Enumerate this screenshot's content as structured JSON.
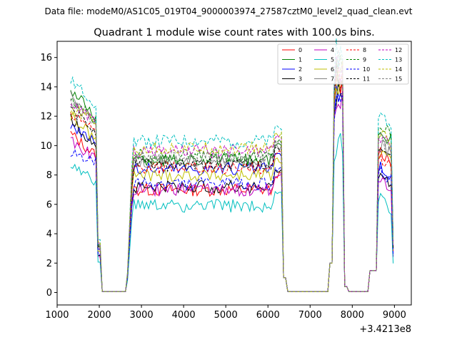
{
  "chart_data": {
    "type": "line",
    "suptitle": "Data file: modeM0/AS1C05_019T04_9000003974_27587cztM0_level2_quad_clean.evt",
    "title": "Quadrant 1 module wise count rates with 100.0s bins.",
    "xlabel": "",
    "ylabel": "",
    "x_offset_label": "+3.4213e8",
    "xlim": [
      1000,
      9400
    ],
    "ylim": [
      -0.85,
      17.1
    ],
    "xticks": [
      1000,
      2000,
      3000,
      4000,
      5000,
      6000,
      7000,
      8000,
      9000
    ],
    "yticks": [
      0,
      2,
      4,
      6,
      8,
      10,
      12,
      14,
      16
    ],
    "legend": {
      "placement": "top-right",
      "columns": 4
    },
    "profile": {
      "description": "time bins (x, data units) with shape: intervals where count rate is ~0 (gaps)",
      "gaps": [
        [
          2050,
          2650
        ],
        [
          6450,
          7450
        ],
        [
          7900,
          8400
        ]
      ],
      "edges": [
        [
          1950,
          2050
        ],
        [
          2650,
          2780
        ],
        [
          6350,
          6450
        ],
        [
          7450,
          7600
        ],
        [
          7800,
          7900
        ],
        [
          8400,
          8580
        ],
        [
          8950,
          9000
        ]
      ],
      "x_start": 1320,
      "x_end": 9000,
      "step": 50
    },
    "series": [
      {
        "name": "0",
        "color": "#ff0000",
        "dash": "solid",
        "levels": {
          "start": 10.8,
          "mid": 7.0,
          "peak": 14.0,
          "tail": 9.8
        }
      },
      {
        "name": "1",
        "color": "#008000",
        "dash": "solid",
        "levels": {
          "start": 13.8,
          "mid": 9.0,
          "peak": 15.0,
          "tail": 11.2
        }
      },
      {
        "name": "2",
        "color": "#0000ff",
        "dash": "solid",
        "levels": {
          "start": 11.4,
          "mid": 8.4,
          "peak": 13.0,
          "tail": 8.6
        }
      },
      {
        "name": "3",
        "color": "#000000",
        "dash": "solid",
        "levels": {
          "start": 11.8,
          "mid": 7.2,
          "peak": 13.6,
          "tail": 8.2
        }
      },
      {
        "name": "4",
        "color": "#bf00bf",
        "dash": "solid",
        "levels": {
          "start": 10.4,
          "mid": 7.0,
          "peak": 13.2,
          "tail": 8.0
        }
      },
      {
        "name": "5",
        "color": "#00bfbf",
        "dash": "solid",
        "levels": {
          "start": 8.6,
          "mid": 5.9,
          "peak": 9.9,
          "tail": 6.6
        }
      },
      {
        "name": "6",
        "color": "#bfbf00",
        "dash": "solid",
        "levels": {
          "start": 12.0,
          "mid": 8.0,
          "peak": 14.2,
          "tail": 9.6
        }
      },
      {
        "name": "7",
        "color": "#808080",
        "dash": "solid",
        "levels": {
          "start": 13.4,
          "mid": 8.9,
          "peak": 14.6,
          "tail": 10.2
        }
      },
      {
        "name": "8",
        "color": "#ff0000",
        "dash": "dashed",
        "levels": {
          "start": 12.2,
          "mid": 8.5,
          "peak": 14.4,
          "tail": 9.4
        }
      },
      {
        "name": "9",
        "color": "#008000",
        "dash": "dashed",
        "levels": {
          "start": 13.2,
          "mid": 9.3,
          "peak": 15.4,
          "tail": 11.6
        }
      },
      {
        "name": "10",
        "color": "#0000ff",
        "dash": "dashed",
        "levels": {
          "start": 9.6,
          "mid": 7.4,
          "peak": 12.8,
          "tail": 8.4
        }
      },
      {
        "name": "11",
        "color": "#000000",
        "dash": "dashed",
        "levels": {
          "start": 12.4,
          "mid": 8.7,
          "peak": 14.8,
          "tail": 10.0
        }
      },
      {
        "name": "12",
        "color": "#bf00bf",
        "dash": "dashed",
        "levels": {
          "start": 12.8,
          "mid": 9.6,
          "peak": 15.2,
          "tail": 10.8
        }
      },
      {
        "name": "13",
        "color": "#00bfbf",
        "dash": "dashed",
        "levels": {
          "start": 14.4,
          "mid": 10.3,
          "peak": 16.2,
          "tail": 12.2
        }
      },
      {
        "name": "14",
        "color": "#bfbf00",
        "dash": "dashed",
        "levels": {
          "start": 12.6,
          "mid": 9.8,
          "peak": 15.0,
          "tail": 11.0
        }
      },
      {
        "name": "15",
        "color": "#808080",
        "dash": "dashed",
        "levels": {
          "start": 13.0,
          "mid": 9.2,
          "peak": 15.6,
          "tail": 10.6
        }
      }
    ]
  }
}
